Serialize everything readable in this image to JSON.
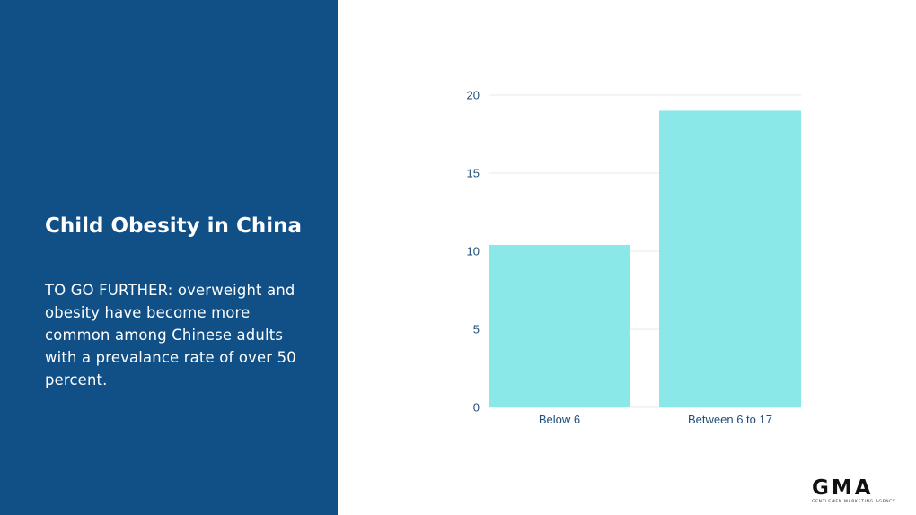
{
  "panel": {
    "title": "Child Obesity in China",
    "body": "TO GO FURTHER: overweight and obesity have become more common among Chinese adults with a prevalance rate of over 50 percent.",
    "background": "#115086"
  },
  "chart_data": {
    "type": "bar",
    "categories": [
      "Below 6",
      "Between 6 to 17"
    ],
    "values": [
      10.4,
      19
    ],
    "ylim": [
      0,
      20
    ],
    "yticks": [
      "0",
      "5",
      "10",
      "15",
      "20"
    ],
    "grid": true,
    "legend": "none",
    "bar_color": "#8ae8e8",
    "axis_text_color": "#1f4e79"
  },
  "logo": {
    "name": "GMA",
    "tagline": "GENTLEMEN MARKETING AGENCY"
  }
}
